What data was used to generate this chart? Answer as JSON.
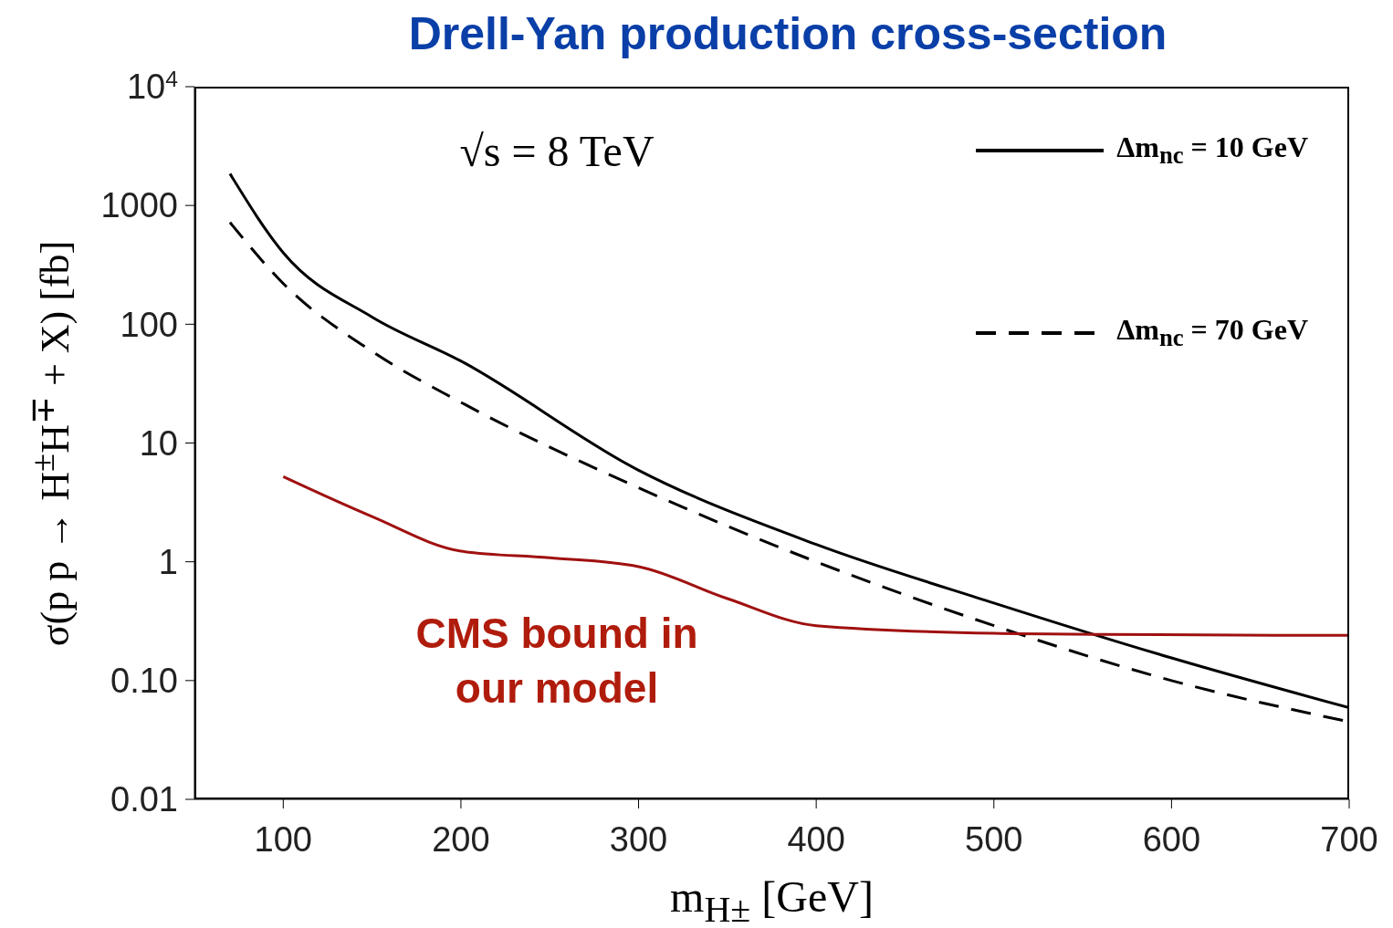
{
  "chart_data": {
    "type": "line",
    "title": "Drell-Yan production cross-section",
    "xlabel": "m$_{H±}$  [GeV]",
    "ylabel": "σ(p p → H$^{±}$H$^{∓}$ + X)  [fb]",
    "annotations": [
      "√s = 8 TeV",
      "CMS bound in our model"
    ],
    "log": "y",
    "xlim": [
      50,
      700
    ],
    "ylim": [
      0.01,
      10000
    ],
    "xticks": [
      100,
      200,
      300,
      400,
      500,
      600,
      700
    ],
    "yticks": [
      0.01,
      {
        "value": 0.1,
        "label": "0.10"
      },
      1,
      10,
      100,
      1000,
      {
        "value": 10000,
        "label": "10$^{4}$"
      }
    ],
    "grid": false,
    "legend": "top right",
    "marker": "none",
    "series": [
      {
        "name": "Δm$_{nc}$ = 10 GeV",
        "color": "#000000",
        "line_style": "solid",
        "x": [
          70,
          100,
          150,
          200,
          300,
          400,
          500,
          600,
          700
        ],
        "values": [
          1850,
          400,
          115,
          49,
          5.9,
          1.4,
          0.45,
          0.155,
          0.059
        ]
      },
      {
        "name": "Δm$_{nc}$ = 70 GeV",
        "color": "#000000",
        "line_style": "dashed",
        "x": [
          70,
          100,
          150,
          200,
          300,
          400,
          500,
          600,
          700
        ],
        "values": [
          720,
          220,
          59,
          22,
          4.2,
          1.0,
          0.29,
          0.1,
          0.045
        ]
      },
      {
        "color": "#a01010",
        "line_style": "solid",
        "x": [
          100,
          150,
          200,
          250,
          300,
          350,
          400,
          500,
          560,
          700
        ],
        "values": [
          5.2,
          2.4,
          1.23,
          1.08,
          0.91,
          0.49,
          0.29,
          0.25,
          0.245,
          0.24
        ]
      }
    ]
  }
}
